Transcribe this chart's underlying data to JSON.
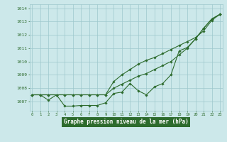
{
  "title": "Graphe pression niveau de la mer (hPa)",
  "hours": [
    0,
    1,
    2,
    3,
    4,
    5,
    6,
    7,
    8,
    9,
    10,
    11,
    12,
    13,
    14,
    15,
    16,
    17,
    18,
    19,
    20,
    21,
    22,
    23
  ],
  "line_jagged": [
    1007.5,
    1007.5,
    1007.1,
    1007.5,
    1006.65,
    1006.65,
    1006.7,
    1006.7,
    1006.7,
    1006.9,
    1007.6,
    1007.7,
    1008.35,
    1007.8,
    1007.5,
    1008.1,
    1008.35,
    1009.0,
    1010.8,
    1011.05,
    1011.7,
    1012.5,
    1013.2,
    1013.55
  ],
  "line_trend1": [
    1007.5,
    1007.5,
    1007.5,
    1007.5,
    1007.5,
    1007.5,
    1007.5,
    1007.5,
    1007.5,
    1007.5,
    1008.0,
    1008.3,
    1008.6,
    1008.9,
    1009.1,
    1009.4,
    1009.7,
    1010.0,
    1010.5,
    1011.0,
    1011.7,
    1012.5,
    1013.2,
    1013.55
  ],
  "line_trend2": [
    1007.5,
    1007.5,
    1007.5,
    1007.5,
    1007.5,
    1007.5,
    1007.5,
    1007.5,
    1007.5,
    1007.5,
    1008.5,
    1009.0,
    1009.4,
    1009.8,
    1010.1,
    1010.3,
    1010.6,
    1010.9,
    1011.2,
    1011.5,
    1011.8,
    1012.3,
    1013.1,
    1013.55
  ],
  "line_color": "#2d6b2d",
  "bg_color": "#cce8ea",
  "grid_color": "#9ec8cc",
  "label_color": "#2d6b2d",
  "title_bg": "#2d6b2d",
  "title_fg": "#ffffff",
  "ylim": [
    1006.3,
    1014.3
  ],
  "yticks": [
    1007,
    1008,
    1009,
    1010,
    1011,
    1012,
    1013,
    1014
  ]
}
